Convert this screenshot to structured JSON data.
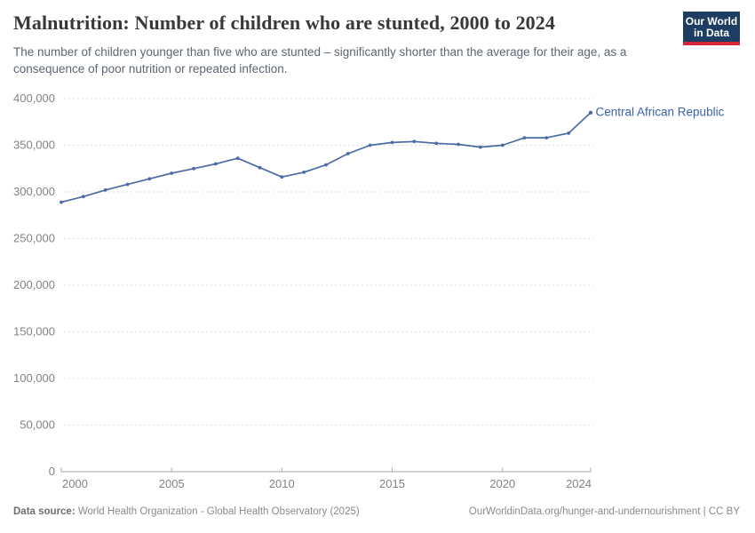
{
  "header": {
    "title": "Malnutrition: Number of children who are stunted, 2000 to 2024",
    "subtitle": "The number of children younger than five who are stunted – significantly shorter than the average for their age, as a consequence of poor nutrition or repeated infection."
  },
  "logo": {
    "line1": "Our World",
    "line2": "in Data",
    "bg_color": "#1d3d63",
    "accent_color": "#d2273a"
  },
  "chart_data": {
    "type": "line",
    "title": "Malnutrition: Number of children who are stunted, 2000 to 2024",
    "xlabel": "",
    "ylabel": "",
    "x": [
      2000,
      2001,
      2002,
      2003,
      2004,
      2005,
      2006,
      2007,
      2008,
      2009,
      2010,
      2011,
      2012,
      2013,
      2014,
      2015,
      2016,
      2017,
      2018,
      2019,
      2020,
      2021,
      2022,
      2023,
      2024
    ],
    "series": [
      {
        "name": "Central African Republic",
        "color": "#4c6ba5",
        "label_color": "#3a63a9",
        "values": [
          289000,
          295000,
          302000,
          308000,
          314000,
          320000,
          325000,
          330000,
          336000,
          326000,
          316000,
          321000,
          329000,
          341000,
          350000,
          353000,
          354000,
          352000,
          351000,
          348000,
          350000,
          358000,
          358000,
          363000,
          385000
        ]
      }
    ],
    "ylim": [
      0,
      400000
    ],
    "ytick_step": 50000,
    "yticks": [
      0,
      50000,
      100000,
      150000,
      200000,
      250000,
      300000,
      350000,
      400000
    ],
    "xticks": [
      2000,
      2005,
      2010,
      2015,
      2020,
      2024
    ],
    "grid": "horizontal-dashed",
    "legend_position": "end-of-line-label",
    "marker": "dot"
  },
  "footer": {
    "datasource_label": "Data source:",
    "datasource_text": " World Health Organization - Global Health Observatory (2025)",
    "link": "OurWorldinData.org/hunger-and-undernourishment | CC BY"
  }
}
